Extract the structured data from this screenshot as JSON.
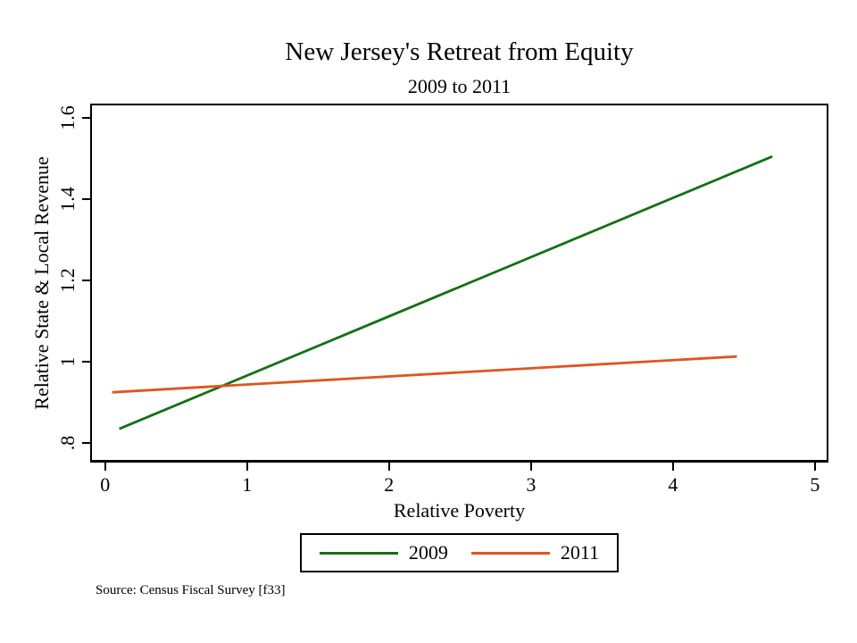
{
  "chart_data": {
    "type": "line",
    "title": "New Jersey's Retreat from Equity",
    "subtitle": "2009 to 2011",
    "xlabel": "Relative Poverty",
    "ylabel": "Relative State & Local Revenue",
    "xlim": [
      -0.105,
      5.095
    ],
    "ylim": [
      0.752,
      1.635
    ],
    "grid": false,
    "legend_position": "bottom",
    "x_ticks": [
      {
        "value": 0,
        "label": "0"
      },
      {
        "value": 1,
        "label": "1"
      },
      {
        "value": 2,
        "label": "2"
      },
      {
        "value": 3,
        "label": "3"
      },
      {
        "value": 4,
        "label": "4"
      },
      {
        "value": 5,
        "label": "5"
      }
    ],
    "y_ticks": [
      {
        "value": 0.8,
        "label": ".8"
      },
      {
        "value": 1.0,
        "label": "1"
      },
      {
        "value": 1.2,
        "label": "1.2"
      },
      {
        "value": 1.4,
        "label": "1.4"
      },
      {
        "value": 1.6,
        "label": "1.6"
      }
    ],
    "series": [
      {
        "name": "2009",
        "color": "#156f15",
        "points": [
          [
            0.1,
            0.835
          ],
          [
            4.7,
            1.505
          ]
        ]
      },
      {
        "name": "2011",
        "color": "#e0551f",
        "points": [
          [
            0.05,
            0.925
          ],
          [
            4.45,
            1.013
          ]
        ]
      }
    ],
    "note": "Source: Census Fiscal Survey [f33]"
  }
}
